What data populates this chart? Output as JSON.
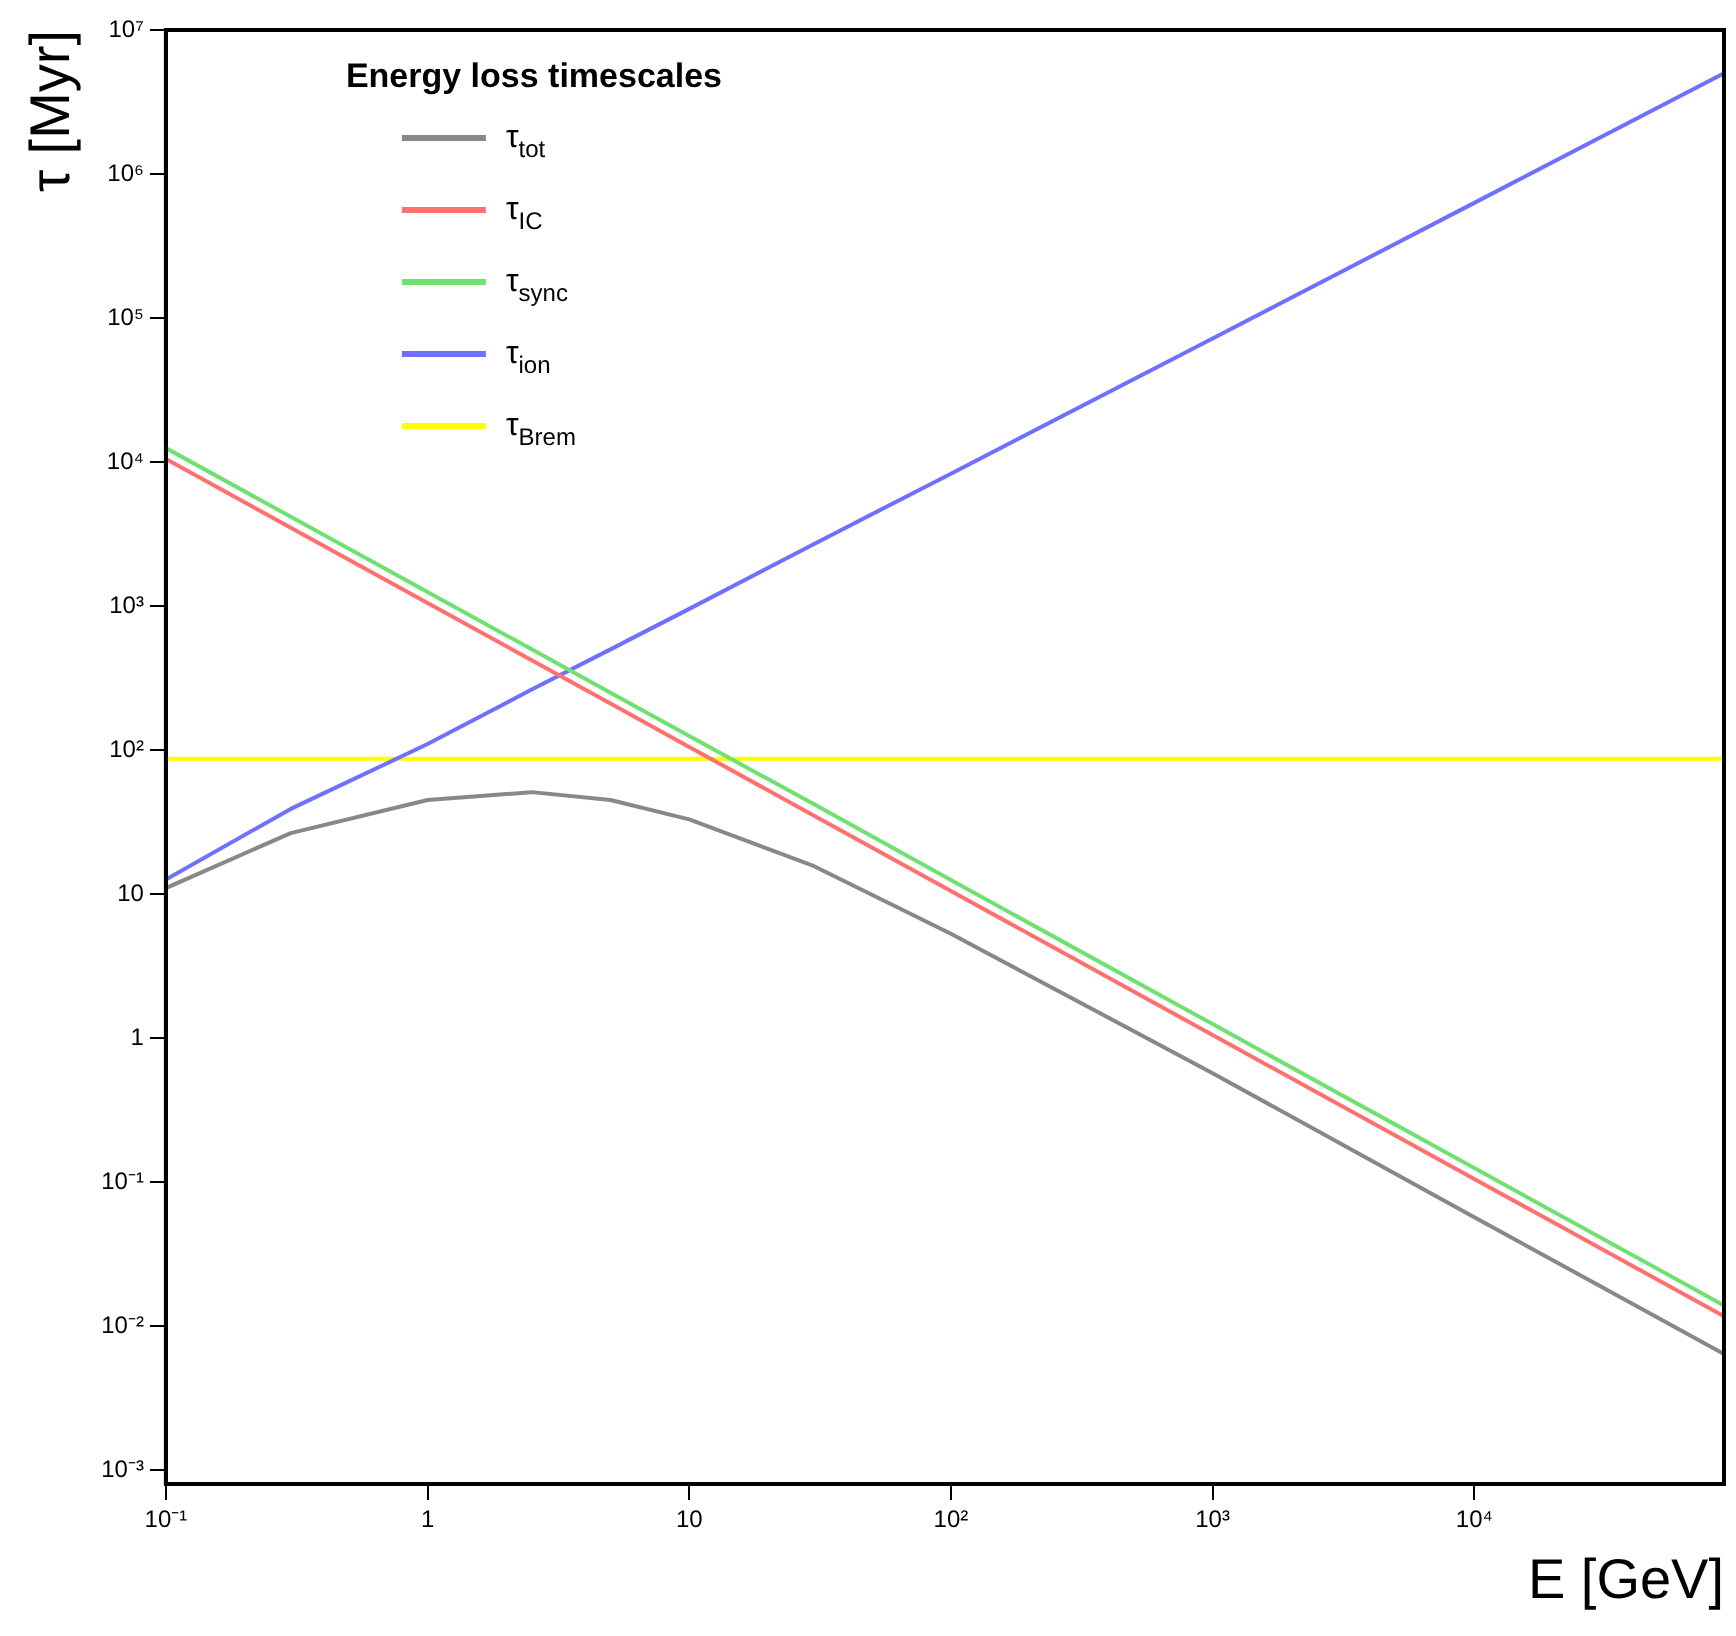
{
  "chart_data": {
    "type": "line",
    "xlabel": "E [GeV]",
    "ylabel": "τ [Myr]",
    "legend_title": "Energy loss timescales",
    "log": "xy",
    "grid": false,
    "legend": "top left",
    "marker": "none",
    "line_style": "solid",
    "x": [
      0.1,
      0.3,
      1,
      2.5,
      5,
      10,
      30,
      100,
      1000,
      10000,
      90000
    ],
    "xlim": [
      0.1,
      90000
    ],
    "ylim": [
      0.0008,
      10000000
    ],
    "xticks": [
      {
        "value": 0.1,
        "label": "10⁻¹"
      },
      1,
      10,
      {
        "value": 100,
        "label": "10²"
      },
      {
        "value": 1000,
        "label": "10³"
      },
      {
        "value": 10000,
        "label": "10⁴"
      }
    ],
    "yticks": [
      {
        "value": 0.001,
        "label": "10⁻³"
      },
      {
        "value": 0.01,
        "label": "10⁻²"
      },
      {
        "value": 0.1,
        "label": "10⁻¹"
      },
      1,
      10,
      {
        "value": 100,
        "label": "10²"
      },
      {
        "value": 1000,
        "label": "10³"
      },
      {
        "value": 10000,
        "label": "10⁴"
      },
      {
        "value": 100000,
        "label": "10⁵"
      },
      {
        "value": 1000000,
        "label": "10⁶"
      },
      {
        "value": 10000000,
        "label": "10⁷"
      }
    ],
    "series": [
      {
        "name": "τ$_{tot}$",
        "color": "#888888",
        "values": [
          11,
          26.5,
          45,
          51,
          45,
          33,
          15.6,
          5.3,
          0.57,
          0.057,
          0.0064
        ]
      },
      {
        "name": "τ$_{IC}$",
        "color": "#ff7070",
        "values": [
          10500,
          3500,
          1050,
          420,
          210,
          105,
          35,
          10.5,
          1.05,
          0.105,
          0.0117
        ]
      },
      {
        "name": "τ$_{sync}$",
        "color": "#70e070",
        "values": [
          12500,
          4170,
          1250,
          500,
          250,
          125,
          42,
          12.5,
          1.25,
          0.125,
          0.0139
        ]
      },
      {
        "name": "τ$_{ion}$",
        "color": "#7070ff",
        "values": [
          12.6,
          39,
          110,
          263,
          500,
          955,
          2700,
          8300,
          72000,
          630000,
          5000000
        ]
      },
      {
        "name": "τ$_{Brem}$",
        "color": "#ffff00",
        "values": [
          87,
          87,
          87,
          87,
          87,
          87,
          87,
          87,
          87,
          87,
          87
        ]
      }
    ]
  }
}
